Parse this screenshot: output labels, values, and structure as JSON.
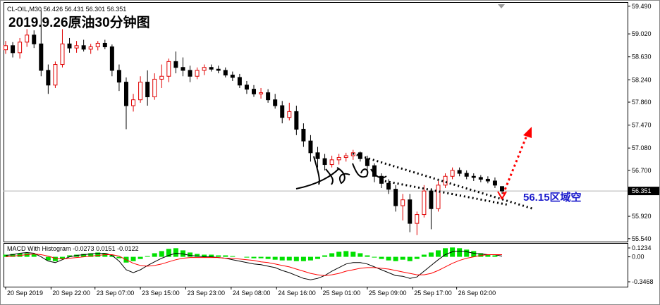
{
  "chart_data": [
    {
      "type": "candlestick",
      "title": "2019.9.26原油30分钟图",
      "symbol": "CL-OIL,M30",
      "annotation": "56.15区域空",
      "up_color": "#e00000",
      "down_color": "#000000",
      "price_line_color": "#b0b0b0",
      "x": [
        0,
        1,
        2,
        3,
        4,
        5,
        6,
        7,
        8,
        9,
        10,
        11,
        12,
        13,
        14,
        15,
        16,
        17,
        18,
        19,
        20,
        21,
        22,
        23,
        24,
        25,
        26,
        27,
        28,
        29,
        30,
        31,
        32,
        33,
        34,
        35,
        36,
        37,
        38,
        39,
        40,
        41,
        42,
        43,
        44,
        45,
        46,
        47,
        48,
        49,
        50,
        51,
        52,
        53,
        54,
        55,
        56,
        57,
        58,
        59,
        60,
        61,
        62,
        63,
        64,
        65,
        66,
        67,
        68,
        69,
        70
      ],
      "open": [
        58.75,
        58.82,
        58.7,
        58.88,
        59.0,
        58.85,
        58.4,
        58.15,
        58.5,
        58.85,
        58.78,
        58.82,
        58.76,
        58.8,
        58.86,
        58.8,
        58.4,
        58.2,
        57.8,
        57.9,
        58.2,
        57.95,
        58.25,
        58.3,
        58.55,
        58.45,
        58.4,
        58.3,
        58.4,
        58.45,
        58.42,
        58.4,
        58.32,
        58.28,
        58.15,
        58.08,
        58.0,
        58.02,
        57.9,
        57.8,
        57.6,
        57.7,
        57.4,
        57.2,
        57.0,
        56.9,
        56.8,
        56.88,
        56.92,
        56.95,
        57.0,
        56.9,
        56.78,
        56.6,
        56.48,
        56.38,
        56.1,
        56.2,
        55.8,
        55.95,
        56.35,
        56.05,
        56.45,
        56.6,
        56.7,
        56.65,
        56.6,
        56.58,
        56.55,
        56.52,
        56.426
      ],
      "high": [
        58.9,
        58.88,
        58.95,
        59.1,
        59.08,
        59.42,
        58.5,
        58.55,
        59.1,
        58.95,
        58.9,
        58.92,
        58.85,
        58.9,
        58.92,
        58.84,
        58.5,
        58.28,
        58.0,
        58.3,
        58.4,
        58.35,
        58.5,
        58.6,
        58.72,
        58.62,
        58.48,
        58.45,
        58.5,
        58.5,
        58.48,
        58.45,
        58.38,
        58.34,
        58.22,
        58.15,
        58.1,
        58.08,
        58.0,
        57.88,
        57.85,
        57.8,
        57.5,
        57.3,
        57.1,
        56.98,
        56.95,
        56.98,
        57.0,
        57.05,
        57.02,
        56.95,
        56.82,
        56.65,
        56.55,
        56.45,
        56.3,
        56.3,
        56.0,
        56.45,
        56.4,
        56.55,
        56.65,
        56.75,
        56.75,
        56.7,
        56.65,
        56.62,
        56.6,
        56.58,
        56.431
      ],
      "low": [
        58.68,
        58.62,
        58.6,
        58.8,
        58.78,
        58.3,
        58.0,
        58.1,
        58.45,
        58.7,
        58.7,
        58.72,
        58.68,
        58.74,
        58.76,
        58.3,
        58.05,
        57.4,
        57.7,
        57.85,
        57.8,
        57.9,
        58.1,
        58.2,
        58.35,
        58.3,
        58.2,
        58.25,
        58.32,
        58.38,
        58.35,
        58.28,
        58.22,
        58.1,
        58.0,
        57.95,
        57.92,
        57.85,
        57.75,
        57.5,
        57.55,
        57.3,
        57.1,
        56.85,
        56.75,
        56.7,
        56.75,
        56.8,
        56.85,
        56.88,
        56.85,
        56.7,
        56.5,
        56.4,
        56.3,
        56.0,
        55.85,
        55.65,
        55.6,
        55.9,
        55.7,
        56.0,
        56.4,
        56.55,
        56.6,
        56.55,
        56.52,
        56.5,
        56.48,
        56.4,
        56.301
      ],
      "close": [
        58.82,
        58.7,
        58.88,
        59.0,
        58.85,
        58.4,
        58.15,
        58.5,
        58.85,
        58.78,
        58.82,
        58.76,
        58.8,
        58.86,
        58.8,
        58.4,
        58.2,
        57.8,
        57.9,
        58.2,
        57.95,
        58.25,
        58.3,
        58.55,
        58.45,
        58.4,
        58.3,
        58.4,
        58.45,
        58.42,
        58.4,
        58.32,
        58.28,
        58.15,
        58.08,
        58.0,
        58.02,
        57.9,
        57.8,
        57.6,
        57.7,
        57.4,
        57.2,
        57.0,
        56.9,
        56.8,
        56.88,
        56.92,
        56.95,
        57.0,
        56.9,
        56.78,
        56.6,
        56.48,
        56.38,
        56.1,
        56.2,
        55.8,
        55.95,
        56.35,
        56.05,
        56.45,
        56.6,
        56.7,
        56.65,
        56.6,
        56.58,
        56.55,
        56.52,
        56.45,
        56.351
      ],
      "xlim": [
        -0.3,
        87.7
      ],
      "xticks": [
        {
          "value": 0,
          "label": "20 Sep 2019"
        },
        {
          "value": 6.4,
          "label": "20 Sep 22:00"
        },
        {
          "value": 12.6,
          "label": "23 Sep 07:00"
        },
        {
          "value": 19,
          "label": "23 Sep 15:00"
        },
        {
          "value": 25.4,
          "label": "23 Sep 23:00"
        },
        {
          "value": 31.8,
          "label": "24 Sep 08:00"
        },
        {
          "value": 38.2,
          "label": "24 Sep 16:00"
        },
        {
          "value": 44.5,
          "label": "25 Sep 01:00"
        },
        {
          "value": 51,
          "label": "25 Sep 09:00"
        },
        {
          "value": 57.4,
          "label": "25 Sep 17:00"
        },
        {
          "value": 63.6,
          "label": "26 Sep 02:00"
        }
      ],
      "ylim": [
        55.49,
        59.56
      ],
      "yticks": [
        {
          "value": 59.49,
          "label": "59.490"
        },
        {
          "value": 59.02,
          "label": "59.020"
        },
        {
          "value": 58.63,
          "label": "58.630"
        },
        {
          "value": 58.24,
          "label": "58.240"
        },
        {
          "value": 57.86,
          "label": "57.860"
        },
        {
          "value": 57.47,
          "label": "57.470"
        },
        {
          "value": 57.08,
          "label": "57.080"
        },
        {
          "value": 56.7,
          "label": "56.700"
        },
        {
          "value": 55.92,
          "label": "55.920"
        },
        {
          "value": 55.54,
          "label": "55.540"
        }
      ],
      "grid": false
    },
    {
      "type": "macd",
      "label": "MACD With Histogram",
      "readout": [
        "-0.0273",
        "0.0151",
        "-0.0122"
      ],
      "series": [
        {
          "color": "#00e000",
          "values": [
            0.03,
            0.04,
            0.05,
            0.05,
            0.04,
            0.0,
            -0.05,
            -0.06,
            -0.03,
            0.02,
            0.03,
            0.04,
            0.05,
            0.06,
            0.05,
            0.02,
            -0.02,
            -0.08,
            -0.06,
            -0.03,
            0.01,
            0.05,
            0.08,
            0.11,
            0.12,
            0.09,
            0.06,
            0.04,
            0.03,
            0.03,
            0.02,
            0.02,
            0.01,
            0.0,
            -0.01,
            -0.02,
            -0.02,
            -0.03,
            -0.04,
            -0.05,
            -0.05,
            -0.06,
            -0.06,
            -0.05,
            -0.03,
            0.02,
            0.05,
            0.07,
            0.08,
            0.07,
            0.05,
            0.02,
            -0.01,
            -0.03,
            -0.05,
            -0.06,
            -0.04,
            -0.06,
            -0.03,
            0.03,
            0.06,
            0.09,
            0.12,
            0.13,
            0.12,
            0.1,
            0.08,
            0.05,
            0.03,
            0.02,
            0.0
          ]
        },
        {
          "color": "#000000",
          "values": [
            0.02,
            0.03,
            0.05,
            0.06,
            0.05,
            0.0,
            -0.06,
            -0.08,
            -0.04,
            0.0,
            0.02,
            0.03,
            0.04,
            0.05,
            0.05,
            0.02,
            -0.06,
            -0.18,
            -0.22,
            -0.18,
            -0.12,
            -0.07,
            -0.02,
            0.02,
            0.05,
            0.04,
            0.02,
            0.01,
            0.0,
            0.0,
            -0.01,
            -0.02,
            -0.04,
            -0.06,
            -0.08,
            -0.1,
            -0.11,
            -0.13,
            -0.15,
            -0.19,
            -0.22,
            -0.26,
            -0.3,
            -0.32,
            -0.3,
            -0.26,
            -0.2,
            -0.15,
            -0.1,
            -0.08,
            -0.08,
            -0.1,
            -0.14,
            -0.18,
            -0.22,
            -0.26,
            -0.27,
            -0.3,
            -0.28,
            -0.2,
            -0.12,
            -0.04,
            0.03,
            0.07,
            0.08,
            0.07,
            0.05,
            0.04,
            0.03,
            0.03,
            0.01
          ]
        },
        {
          "color": "#ff0000",
          "values": [
            0.0,
            0.01,
            0.02,
            0.03,
            0.04,
            0.03,
            0.01,
            -0.02,
            -0.03,
            -0.02,
            -0.01,
            0.0,
            0.01,
            0.02,
            0.03,
            0.03,
            0.01,
            -0.04,
            -0.09,
            -0.12,
            -0.13,
            -0.12,
            -0.1,
            -0.07,
            -0.04,
            -0.02,
            -0.01,
            -0.01,
            -0.01,
            -0.01,
            -0.01,
            -0.02,
            -0.02,
            -0.03,
            -0.04,
            -0.05,
            -0.07,
            -0.08,
            -0.1,
            -0.12,
            -0.14,
            -0.17,
            -0.2,
            -0.23,
            -0.25,
            -0.26,
            -0.25,
            -0.23,
            -0.2,
            -0.18,
            -0.16,
            -0.15,
            -0.15,
            -0.16,
            -0.17,
            -0.19,
            -0.21,
            -0.23,
            -0.25,
            -0.25,
            -0.23,
            -0.19,
            -0.14,
            -0.09,
            -0.05,
            -0.02,
            0.0,
            0.02,
            0.03,
            0.03,
            0.03
          ]
        }
      ],
      "ylim": [
        -0.415,
        0.182
      ],
      "yticks": [
        0.1234,
        {
          "value": 0,
          "label": "0.00"
        },
        -0.3468
      ]
    }
  ]
}
